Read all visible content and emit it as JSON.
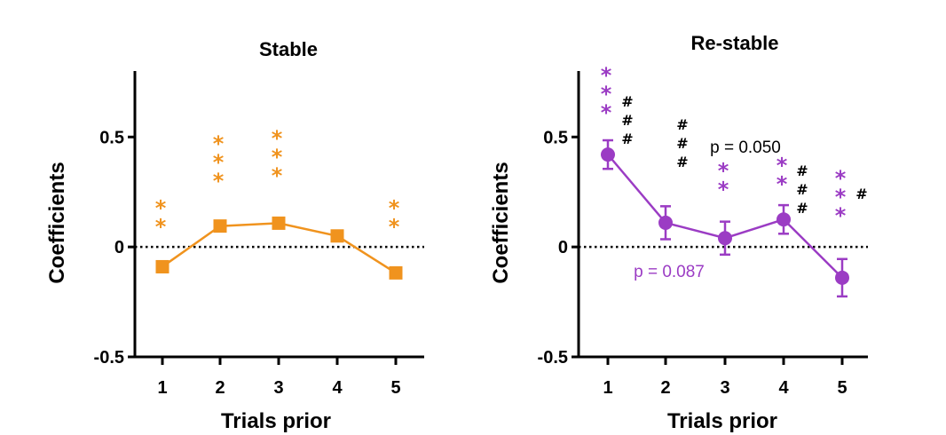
{
  "colors": {
    "stable": "#F0931E",
    "restable": "#9B3CC4",
    "axis": "#000000"
  },
  "chart_data": [
    {
      "type": "line",
      "title": "Stable",
      "xlabel": "Trials prior",
      "ylabel": "Coefficients",
      "x": [
        1,
        2,
        3,
        4,
        5
      ],
      "values": [
        -0.09,
        0.095,
        0.108,
        0.05,
        -0.118
      ],
      "error": [
        0.025,
        0.02,
        0.02,
        0.02,
        0.02
      ],
      "ylim": [
        -0.5,
        0.8
      ],
      "yticks": [
        -0.5,
        0,
        0.5
      ],
      "ytick_labels": [
        "-0.5",
        "0",
        "0.5"
      ],
      "xtick_labels": [
        "1",
        "2",
        "3",
        "4",
        "5"
      ],
      "reference_line": 0,
      "marker": "square",
      "color": "#F0931E",
      "significance": [
        {
          "x": 1,
          "label": "**"
        },
        {
          "x": 2,
          "label": "***"
        },
        {
          "x": 3,
          "label": "***"
        },
        {
          "x": 5,
          "label": "**"
        }
      ],
      "hash_marks": [],
      "annotations": []
    },
    {
      "type": "line",
      "title": "Re-stable",
      "xlabel": "Trials prior",
      "ylabel": "Coefficients",
      "x": [
        1,
        2,
        3,
        4,
        5
      ],
      "values": [
        0.42,
        0.11,
        0.04,
        0.125,
        -0.14
      ],
      "error": [
        0.065,
        0.075,
        0.075,
        0.065,
        0.085
      ],
      "ylim": [
        -0.5,
        0.8
      ],
      "yticks": [
        -0.5,
        0,
        0.5
      ],
      "ytick_labels": [
        "-0.5",
        "0",
        "0.5"
      ],
      "xtick_labels": [
        "1",
        "2",
        "3",
        "4",
        "5"
      ],
      "reference_line": 0,
      "marker": "circle",
      "color": "#9B3CC4",
      "significance": [
        {
          "x": 1,
          "label": "***"
        },
        {
          "x": 3,
          "label": "**"
        },
        {
          "x": 4,
          "label": "**"
        },
        {
          "x": 5,
          "label": "***"
        }
      ],
      "hash_marks": [
        {
          "after_x": 1,
          "label": "###"
        },
        {
          "after_x": 2,
          "label": "###"
        },
        {
          "after_x": 4,
          "label": "###"
        },
        {
          "after_x": 5,
          "label": "#"
        }
      ],
      "annotations": [
        {
          "text": "p = 0.050",
          "color": "#000000"
        },
        {
          "text": "p = 0.087",
          "color": "#9B3CC4"
        }
      ]
    }
  ]
}
